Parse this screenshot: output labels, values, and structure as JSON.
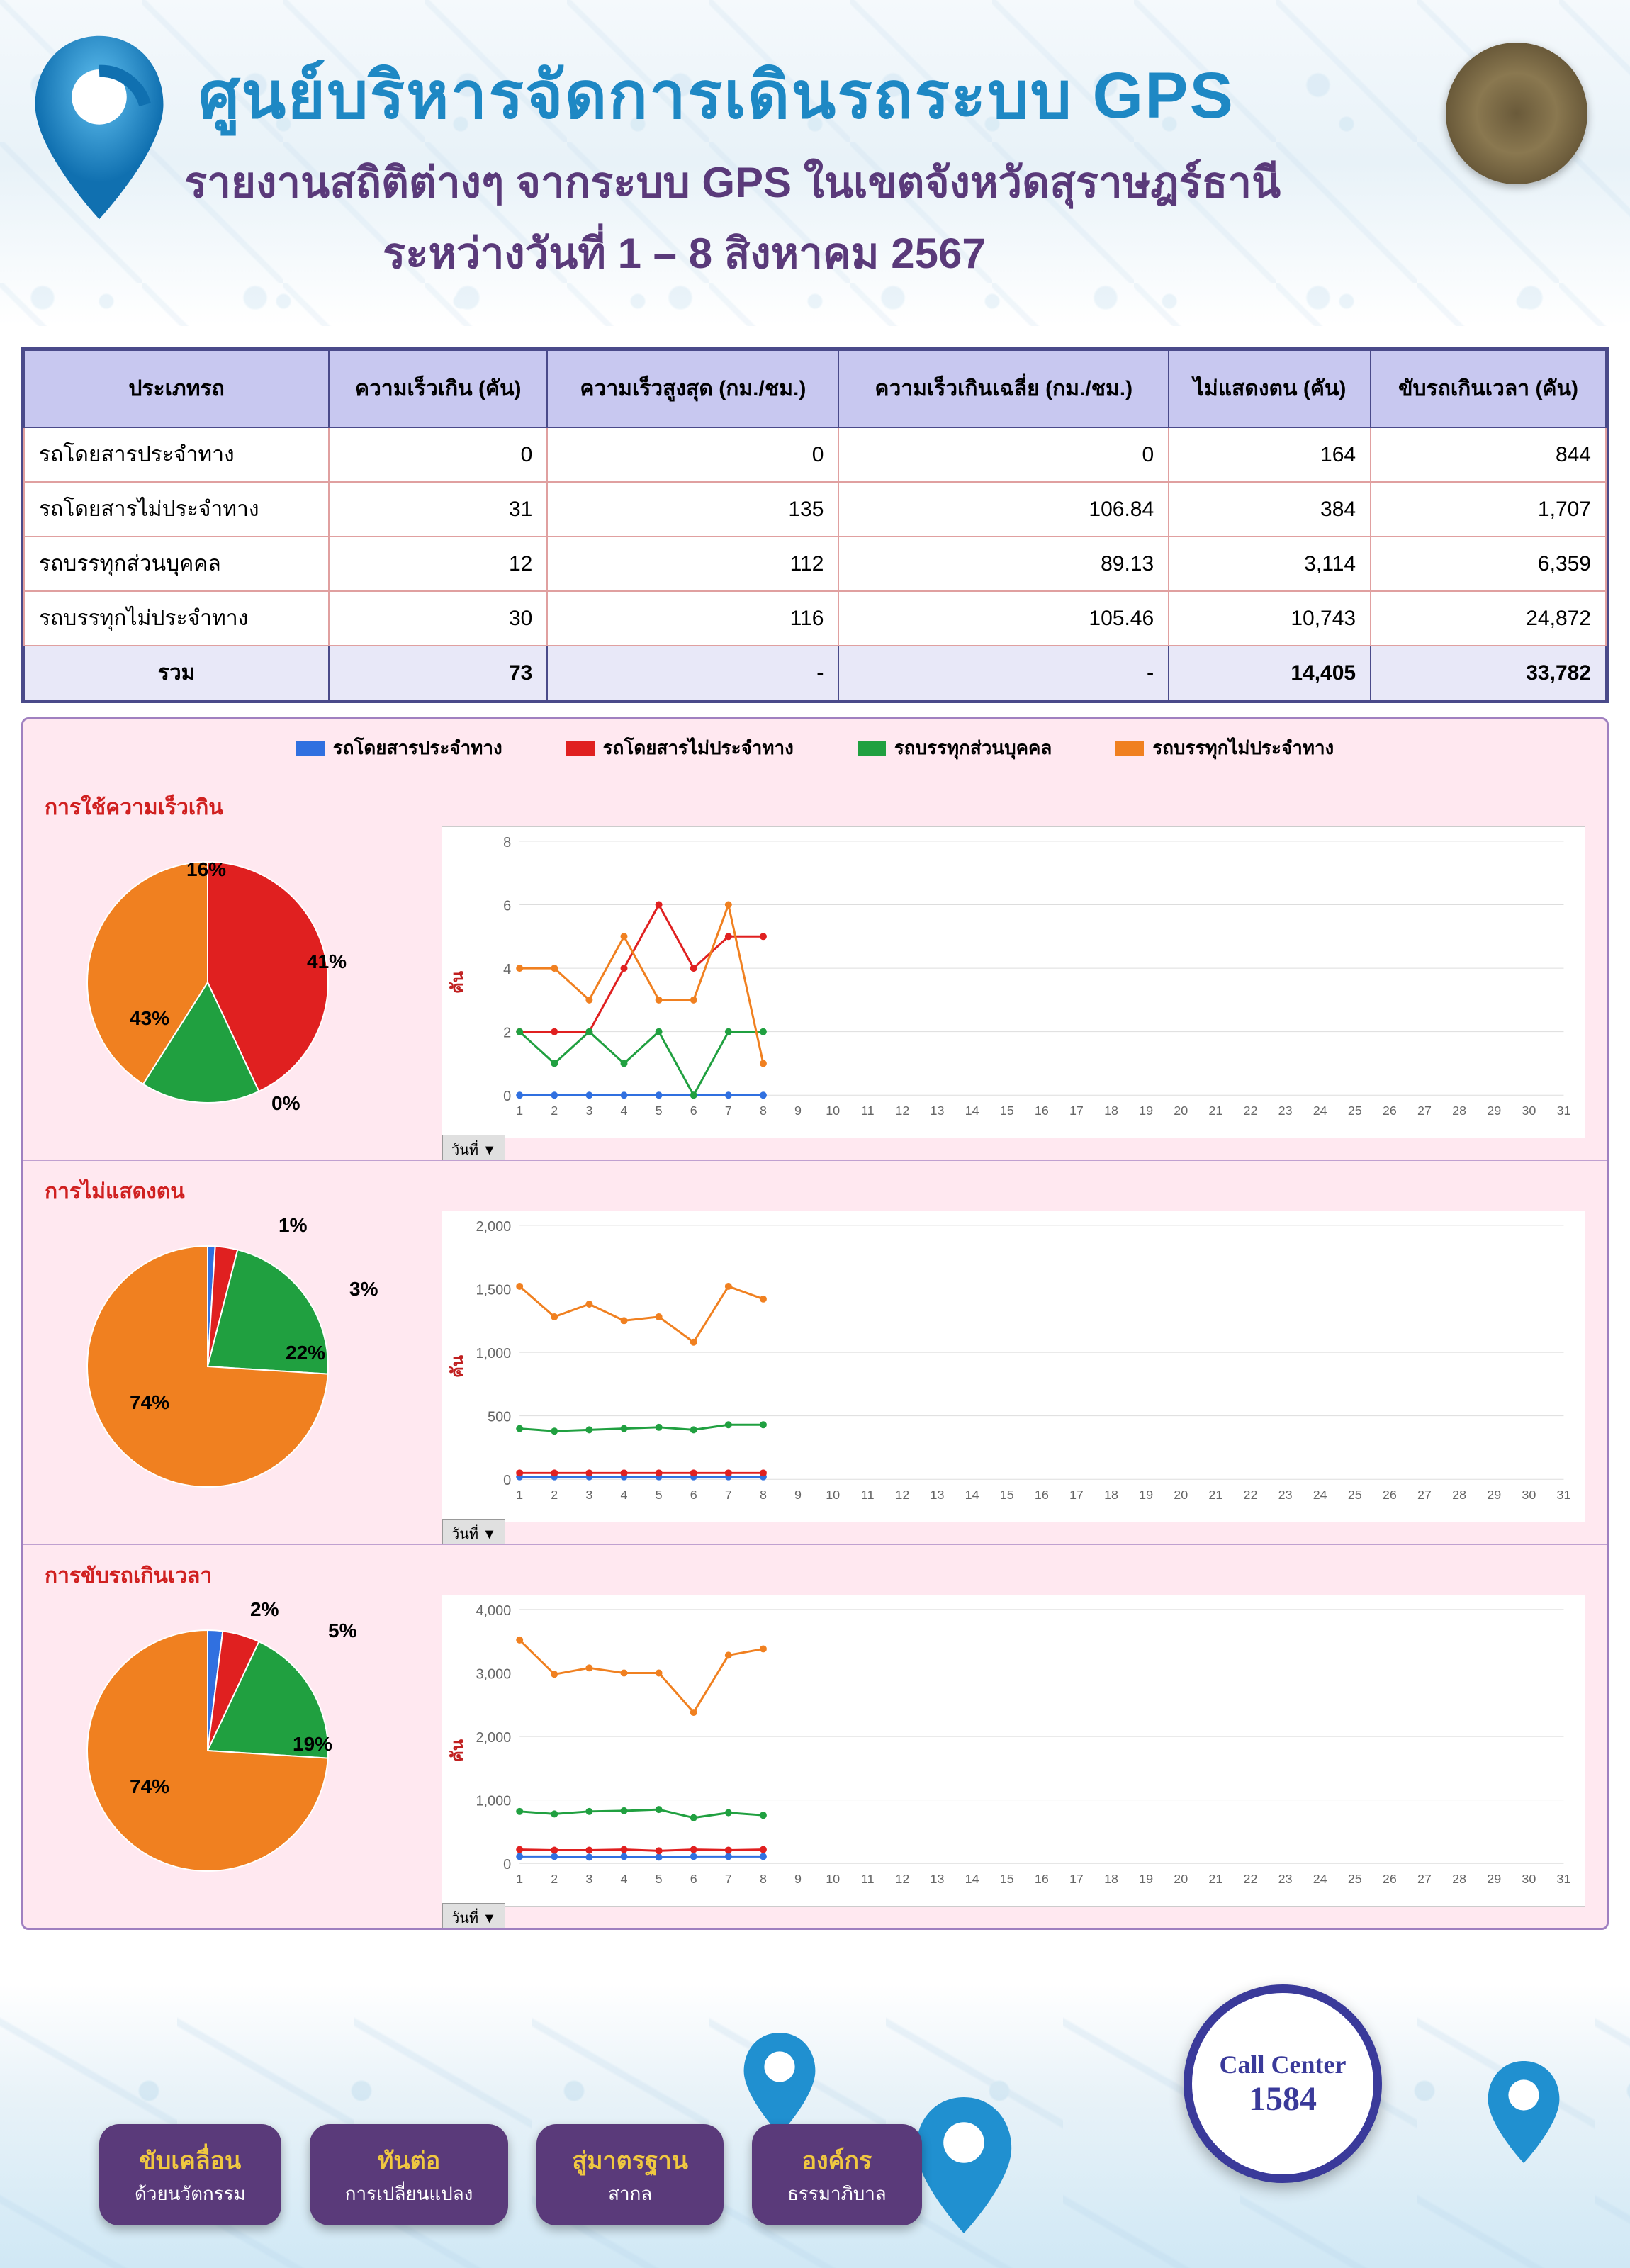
{
  "header": {
    "title_main": "ศูนย์บริหารจัดการเดินรถระบบ GPS",
    "subtitle": "รายงานสถิติต่างๆ จากระบบ GPS ในเขตจังหวัดสุราษฎร์ธานี",
    "date_range": "ระหว่างวันที่   1 – 8  สิงหาคม 2567",
    "title_color": "#1e88c4",
    "subtitle_color": "#5a3a7a"
  },
  "legend": {
    "items": [
      {
        "label": "รถโดยสารประจำทาง",
        "color": "#3070e0"
      },
      {
        "label": "รถโดยสารไม่ประจำทาง",
        "color": "#e02020"
      },
      {
        "label": "รถบรรทุกส่วนบุคคล",
        "color": "#20a040"
      },
      {
        "label": "รถบรรทุกไม่ประจำทาง",
        "color": "#f08020"
      }
    ]
  },
  "table": {
    "header_bg": "#c8c8f0",
    "border_color": "#4a4a8a",
    "row_border_color": "#e0a0a0",
    "total_bg": "#e8e8f8",
    "columns": [
      "ประเภทรถ",
      "ความเร็วเกิน (คัน)",
      "ความเร็วสูงสุด (กม./ชม.)",
      "ความเร็วเกินเฉลี่ย (กม./ชม.)",
      "ไม่แสดงตน (คัน)",
      "ขับรถเกินเวลา (คัน)"
    ],
    "rows": [
      [
        "รถโดยสารประจำทาง",
        "0",
        "0",
        "0",
        "164",
        "844"
      ],
      [
        "รถโดยสารไม่ประจำทาง",
        "31",
        "135",
        "106.84",
        "384",
        "1,707"
      ],
      [
        "รถบรรทุกส่วนบุคคล",
        "12",
        "112",
        "89.13",
        "3,114",
        "6,359"
      ],
      [
        "รถบรรทุกไม่ประจำทาง",
        "30",
        "116",
        "105.46",
        "10,743",
        "24,872"
      ]
    ],
    "total": [
      "รวม",
      "73",
      "-",
      "-",
      "14,405",
      "33,782"
    ]
  },
  "charts": {
    "x_axis_label": "วันที่ ▼",
    "y_axis_label": "คัน",
    "x_ticks": [
      1,
      2,
      3,
      4,
      5,
      6,
      7,
      8,
      9,
      10,
      11,
      12,
      13,
      14,
      15,
      16,
      17,
      18,
      19,
      20,
      21,
      22,
      23,
      24,
      25,
      26,
      27,
      28,
      29,
      30,
      31
    ],
    "panels": [
      {
        "title": "การใช้ความเร็วเกิน",
        "pie": {
          "slices": [
            {
              "pct": 0,
              "label": "0%",
              "color": "#3070e0",
              "lx": 320,
              "ly": 400
            },
            {
              "pct": 43,
              "label": "43%",
              "color": "#e02020",
              "lx": 120,
              "ly": 280
            },
            {
              "pct": 16,
              "label": "16%",
              "color": "#20a040",
              "lx": 200,
              "ly": 70
            },
            {
              "pct": 41,
              "label": "41%",
              "color": "#f08020",
              "lx": 370,
              "ly": 200
            }
          ]
        },
        "line": {
          "ymin": 0,
          "ymax": 8,
          "yticks": [
            0,
            2,
            4,
            6,
            8
          ],
          "series": [
            {
              "color": "#3070e0",
              "pts": [
                0,
                0,
                0,
                0,
                0,
                0,
                0,
                0
              ]
            },
            {
              "color": "#e02020",
              "pts": [
                2,
                2,
                2,
                4,
                6,
                4,
                5,
                5
              ]
            },
            {
              "color": "#20a040",
              "pts": [
                2,
                1,
                2,
                1,
                2,
                0,
                2,
                2
              ]
            },
            {
              "color": "#f08020",
              "pts": [
                4,
                4,
                3,
                5,
                3,
                3,
                6,
                1
              ]
            }
          ]
        }
      },
      {
        "title": "การไม่แสดงตน",
        "pie": {
          "slices": [
            {
              "pct": 1,
              "label": "1%",
              "color": "#3070e0",
              "lx": 330,
              "ly": 30
            },
            {
              "pct": 3,
              "label": "3%",
              "color": "#e02020",
              "lx": 430,
              "ly": 120
            },
            {
              "pct": 22,
              "label": "22%",
              "color": "#20a040",
              "lx": 340,
              "ly": 210
            },
            {
              "pct": 74,
              "label": "74%",
              "color": "#f08020",
              "lx": 120,
              "ly": 280
            }
          ]
        },
        "line": {
          "ymin": 0,
          "ymax": 2000,
          "yticks": [
            0,
            500,
            1000,
            1500,
            2000
          ],
          "series": [
            {
              "color": "#3070e0",
              "pts": [
                20,
                20,
                20,
                20,
                20,
                20,
                20,
                20
              ]
            },
            {
              "color": "#e02020",
              "pts": [
                50,
                50,
                50,
                50,
                50,
                50,
                50,
                50
              ]
            },
            {
              "color": "#20a040",
              "pts": [
                400,
                380,
                390,
                400,
                410,
                390,
                430,
                430
              ]
            },
            {
              "color": "#f08020",
              "pts": [
                1520,
                1280,
                1380,
                1250,
                1280,
                1080,
                1520,
                1420
              ]
            }
          ]
        }
      },
      {
        "title": "การขับรถเกินเวลา",
        "pie": {
          "slices": [
            {
              "pct": 2,
              "label": "2%",
              "color": "#3070e0",
              "lx": 290,
              "ly": 30
            },
            {
              "pct": 5,
              "label": "5%",
              "color": "#e02020",
              "lx": 400,
              "ly": 60
            },
            {
              "pct": 19,
              "label": "19%",
              "color": "#20a040",
              "lx": 350,
              "ly": 220
            },
            {
              "pct": 74,
              "label": "74%",
              "color": "#f08020",
              "lx": 120,
              "ly": 280
            }
          ]
        },
        "line": {
          "ymin": 0,
          "ymax": 4000,
          "yticks": [
            0,
            1000,
            2000,
            3000,
            4000
          ],
          "series": [
            {
              "color": "#3070e0",
              "pts": [
                110,
                110,
                100,
                110,
                100,
                110,
                110,
                110
              ]
            },
            {
              "color": "#e02020",
              "pts": [
                220,
                210,
                210,
                220,
                200,
                220,
                210,
                220
              ]
            },
            {
              "color": "#20a040",
              "pts": [
                820,
                780,
                820,
                830,
                850,
                720,
                800,
                760
              ]
            },
            {
              "color": "#f08020",
              "pts": [
                3520,
                2980,
                3080,
                3000,
                3000,
                2380,
                3280,
                3380
              ]
            }
          ]
        }
      }
    ]
  },
  "footer": {
    "badges": [
      {
        "line1": "ขับเคลื่อน",
        "line2": "ด้วยนวัตกรรม"
      },
      {
        "line1": "ทันต่อ",
        "line2": "การเปลี่ยนแปลง"
      },
      {
        "line1": "สู่มาตรฐาน",
        "line2": "สากล"
      },
      {
        "line1": "องค์กร",
        "line2": "ธรรมาภิบาล"
      }
    ],
    "call_center": {
      "title": "Call Center",
      "number": "1584"
    },
    "badge_bg": "#5a3a7a",
    "badge_accent": "#f0c840"
  }
}
